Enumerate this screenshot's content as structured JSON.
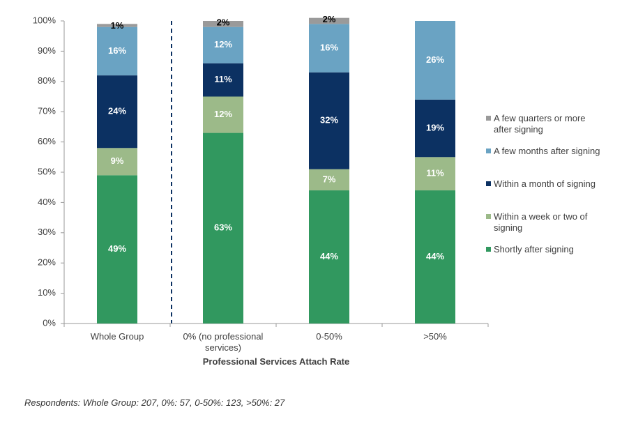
{
  "chart_data": {
    "type": "stacked_bar",
    "categories": [
      "Whole Group",
      "0% (no professional services)",
      "0-50%",
      ">50%"
    ],
    "series": [
      {
        "name": "Shortly after signing",
        "color": "#31985f",
        "values": [
          49,
          63,
          44,
          44
        ],
        "value_labels": [
          "49%",
          "63%",
          "44%",
          "44%"
        ]
      },
      {
        "name": "Within a week or two of signing",
        "color": "#9cba89",
        "values": [
          9,
          12,
          7,
          11
        ],
        "value_labels": [
          "9%",
          "12%",
          "7%",
          "11%"
        ]
      },
      {
        "name": "Within a month of signing",
        "color": "#0c3162",
        "values": [
          24,
          11,
          32,
          19
        ],
        "value_labels": [
          "24%",
          "11%",
          "32%",
          "19%"
        ]
      },
      {
        "name": "A few months after signing",
        "color": "#6aa3c3",
        "values": [
          16,
          12,
          16,
          26
        ],
        "value_labels": [
          "16%",
          "12%",
          "16%",
          "26%"
        ]
      },
      {
        "name": "A few quarters or more after signing",
        "color": "#9a9a9a",
        "values": [
          1,
          2,
          2,
          0
        ],
        "value_labels": [
          "1%",
          "2%",
          "2%",
          null
        ]
      }
    ],
    "ylim": [
      0,
      100
    ],
    "yticks": [
      {
        "value": 0,
        "label": "0%"
      },
      {
        "value": 10,
        "label": "10%"
      },
      {
        "value": 20,
        "label": "20%"
      },
      {
        "value": 30,
        "label": "30%"
      },
      {
        "value": 40,
        "label": "40%"
      },
      {
        "value": 50,
        "label": "50%"
      },
      {
        "value": 60,
        "label": "60%"
      },
      {
        "value": 70,
        "label": "70%"
      },
      {
        "value": 80,
        "label": "80%"
      },
      {
        "value": 90,
        "label": "90%"
      },
      {
        "value": 100,
        "label": "100%"
      }
    ],
    "xlabel": "Professional Services Attach Rate",
    "note": "Respondents: Whole Group: 207, 0%: 57, 0-50%: 123, >50%: 27",
    "legend": "right"
  }
}
